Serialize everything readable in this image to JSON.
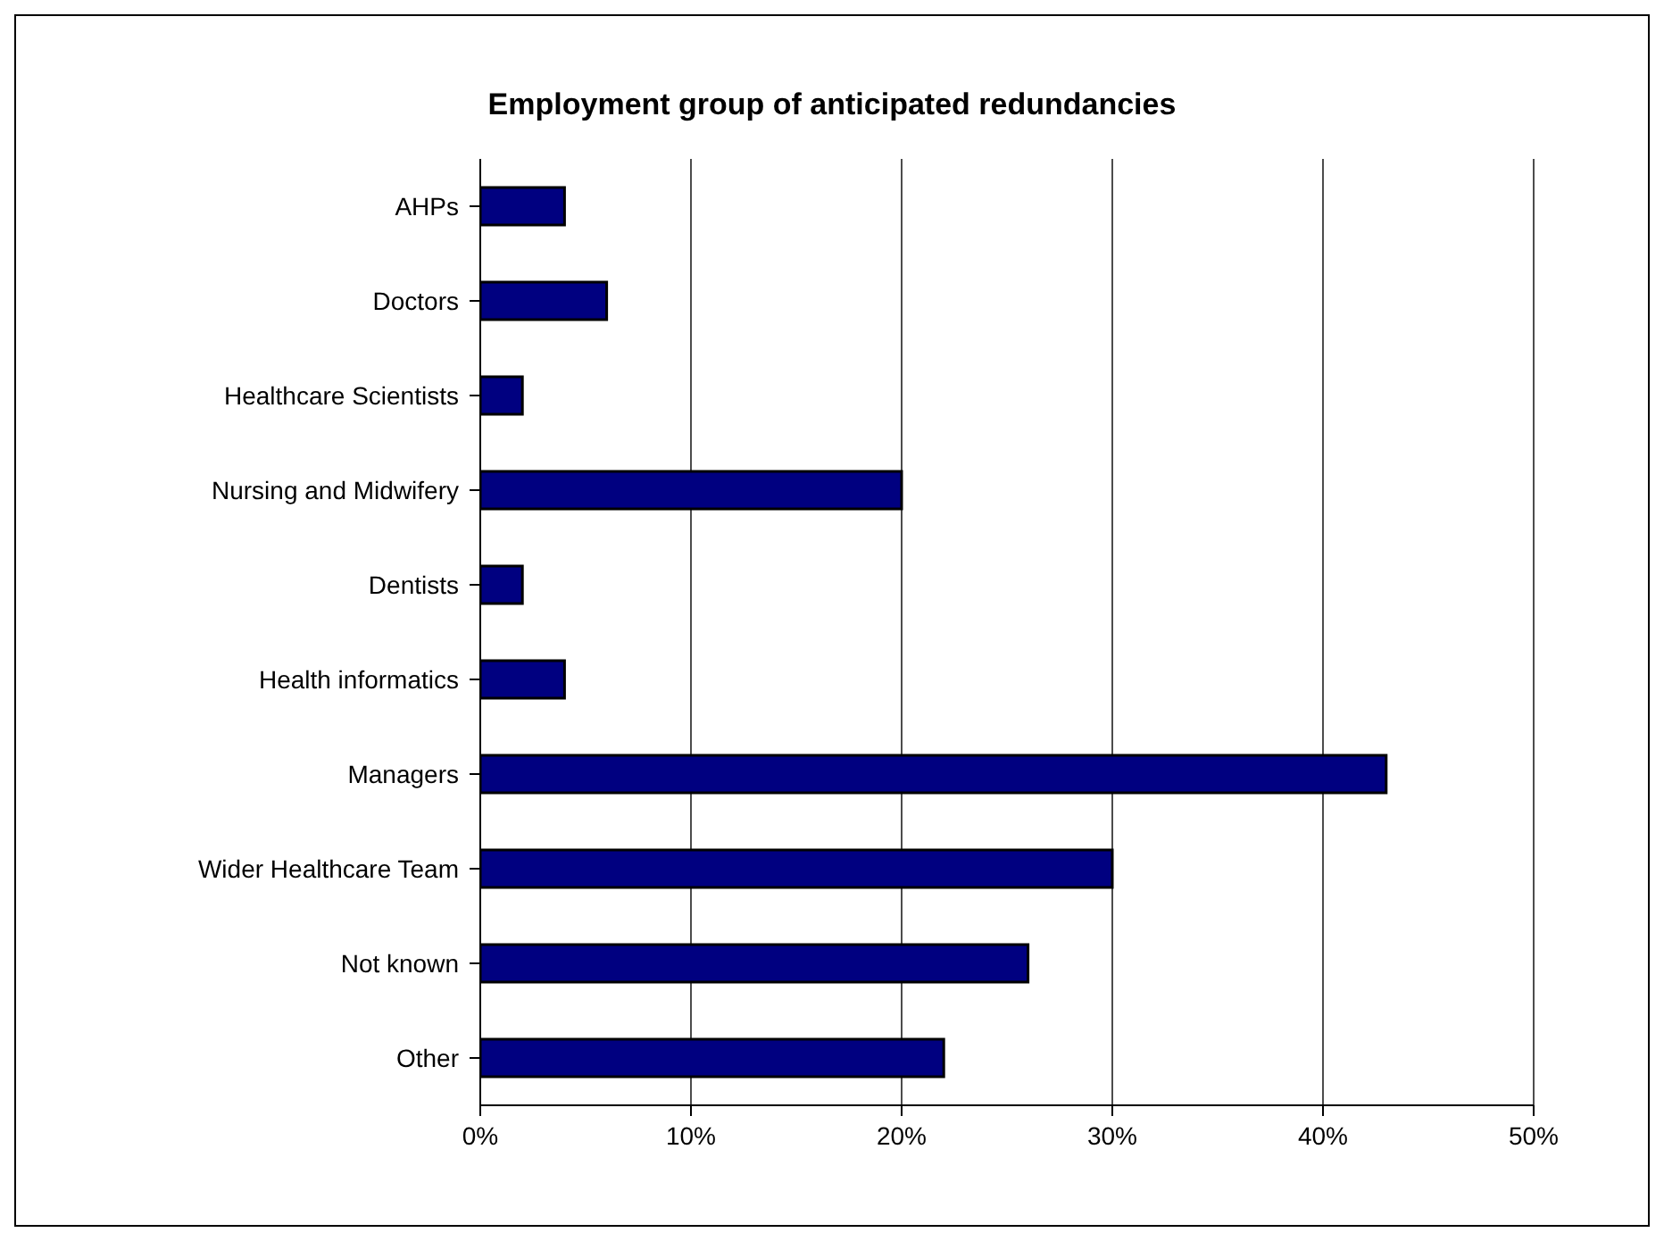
{
  "chart_data": {
    "type": "bar",
    "orientation": "horizontal",
    "title": "Employment group of anticipated redundancies",
    "categories": [
      "AHPs",
      "Doctors",
      "Healthcare Scientists",
      "Nursing and Midwifery",
      "Dentists",
      "Health informatics",
      "Managers",
      "Wider Healthcare Team",
      "Not known",
      "Other"
    ],
    "values": [
      4,
      6,
      2,
      20,
      2,
      4,
      43,
      30,
      26,
      22
    ],
    "color": "#000080",
    "xlim": [
      0,
      50
    ],
    "xticks": [
      {
        "value": 0,
        "label": "0%"
      },
      {
        "value": 10,
        "label": "10%"
      },
      {
        "value": 20,
        "label": "20%"
      },
      {
        "value": 30,
        "label": "30%"
      },
      {
        "value": 40,
        "label": "40%"
      },
      {
        "value": 50,
        "label": "50%"
      }
    ],
    "grid": "x",
    "legend": false
  }
}
